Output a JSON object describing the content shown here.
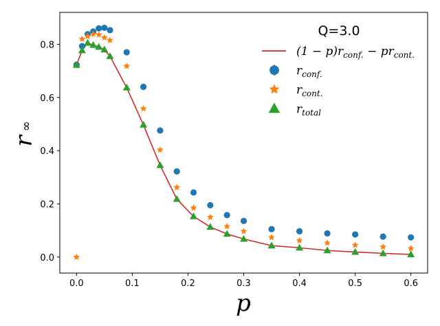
{
  "chart_data": {
    "type": "scatter",
    "title": "",
    "xlabel": "p",
    "ylabel_main": "r",
    "ylabel_sub": "∞",
    "xlim": [
      -0.03,
      0.63
    ],
    "ylim": [
      -0.06,
      0.92
    ],
    "xticks": [
      0.0,
      0.1,
      0.2,
      0.3,
      0.4,
      0.5,
      0.6
    ],
    "xtick_labels": [
      "0.0",
      "0.1",
      "0.2",
      "0.3",
      "0.4",
      "0.5",
      "0.6"
    ],
    "yticks": [
      0.0,
      0.2,
      0.4,
      0.6,
      0.8
    ],
    "ytick_labels": [
      "0.0",
      "0.2",
      "0.4",
      "0.6",
      "0.8"
    ],
    "grid": false,
    "legend": {
      "position": "top-right",
      "title": "Q=3.0",
      "entries": [
        {
          "pre": "(1 − p)r",
          "sub1": "conf.",
          "mid": " − pr",
          "sub2": "cont."
        },
        {
          "pre": "r",
          "sub1": "conf."
        },
        {
          "pre": "r",
          "sub1": "cont."
        },
        {
          "pre": "r",
          "sub1": "total"
        }
      ]
    },
    "colors": {
      "line": "#d62728",
      "conf": "#1f77b4",
      "cont": "#ff7f0e",
      "total": "#2ca02c"
    },
    "series": [
      {
        "name": "(1-p)r_conf. - p r_cont.",
        "marker": "line",
        "x": [
          0.0,
          0.01,
          0.02,
          0.03,
          0.04,
          0.05,
          0.06,
          0.09,
          0.12,
          0.15,
          0.18,
          0.21,
          0.24,
          0.27,
          0.3,
          0.35,
          0.4,
          0.45,
          0.5,
          0.55,
          0.6
        ],
        "y": [
          0.722,
          0.777,
          0.805,
          0.797,
          0.79,
          0.78,
          0.755,
          0.637,
          0.497,
          0.345,
          0.218,
          0.153,
          0.113,
          0.087,
          0.068,
          0.043,
          0.035,
          0.025,
          0.019,
          0.014,
          0.01
        ]
      },
      {
        "name": "r_conf.",
        "marker": "circle",
        "x": [
          0.0,
          0.01,
          0.02,
          0.03,
          0.04,
          0.05,
          0.06,
          0.09,
          0.12,
          0.15,
          0.18,
          0.21,
          0.24,
          0.27,
          0.3,
          0.35,
          0.4,
          0.45,
          0.5,
          0.55,
          0.6
        ],
        "y": [
          0.723,
          0.793,
          0.838,
          0.848,
          0.86,
          0.862,
          0.853,
          0.77,
          0.64,
          0.476,
          0.322,
          0.243,
          0.195,
          0.158,
          0.136,
          0.105,
          0.097,
          0.089,
          0.085,
          0.077,
          0.074
        ]
      },
      {
        "name": "r_cont.",
        "marker": "star",
        "x": [
          0.0,
          0.01,
          0.02,
          0.03,
          0.04,
          0.05,
          0.06,
          0.09,
          0.12,
          0.15,
          0.18,
          0.21,
          0.24,
          0.27,
          0.3,
          0.35,
          0.4,
          0.45,
          0.5,
          0.55,
          0.6
        ],
        "y": [
          0.0,
          0.82,
          0.83,
          0.838,
          0.836,
          0.825,
          0.815,
          0.718,
          0.558,
          0.403,
          0.262,
          0.185,
          0.15,
          0.115,
          0.097,
          0.074,
          0.062,
          0.053,
          0.045,
          0.038,
          0.032
        ]
      },
      {
        "name": "r_total",
        "marker": "triangle",
        "x": [
          0.0,
          0.01,
          0.02,
          0.03,
          0.04,
          0.05,
          0.06,
          0.09,
          0.12,
          0.15,
          0.18,
          0.21,
          0.24,
          0.27,
          0.3,
          0.35,
          0.4,
          0.45,
          0.5,
          0.55,
          0.6
        ],
        "y": [
          0.722,
          0.777,
          0.805,
          0.797,
          0.79,
          0.78,
          0.755,
          0.637,
          0.497,
          0.345,
          0.218,
          0.153,
          0.113,
          0.087,
          0.068,
          0.043,
          0.035,
          0.025,
          0.019,
          0.014,
          0.01
        ]
      }
    ]
  }
}
